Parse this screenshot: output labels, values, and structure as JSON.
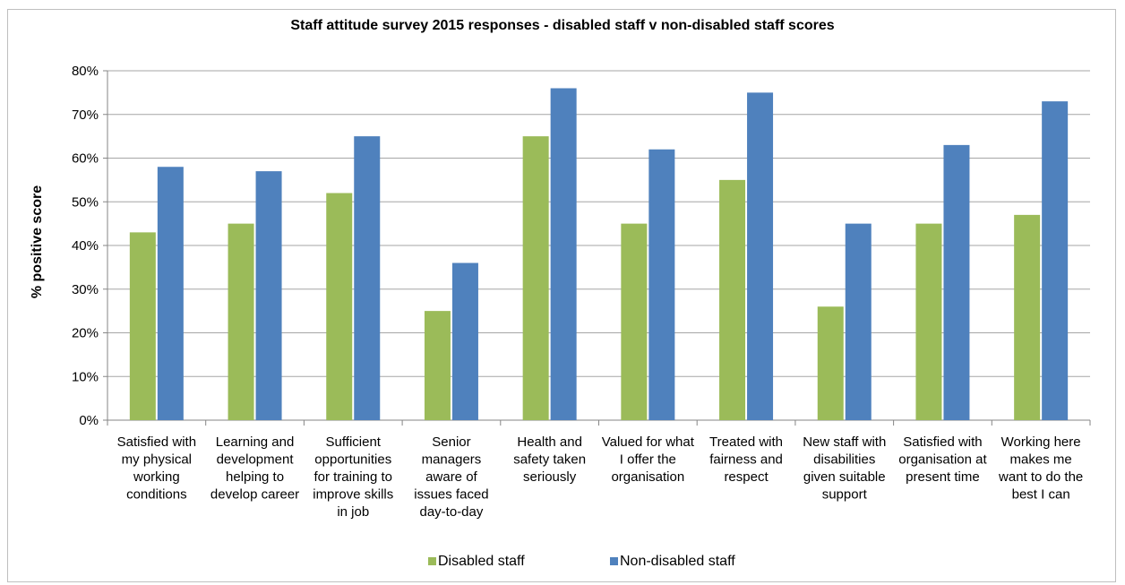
{
  "chart_data": {
    "type": "bar",
    "title": "Staff attitude survey 2015 responses - disabled staff v non-disabled staff scores",
    "ylabel": "% positive score",
    "xlabel": "",
    "ylim": [
      0,
      80
    ],
    "yticks": [
      "0%",
      "10%",
      "20%",
      "30%",
      "40%",
      "50%",
      "60%",
      "70%",
      "80%"
    ],
    "grid": true,
    "legend_position": "bottom",
    "categories": [
      "Satisfied with my physical working conditions",
      "Learning and development helping to develop career",
      "Sufficient opportunities for training to improve skills in job",
      "Senior managers aware of issues faced day-to-day",
      "Health and safety taken seriously",
      "Valued for what I offer the organisation",
      "Treated with fairness and respect",
      "New staff with disabilities given suitable support",
      "Satisfied with organisation at present time",
      "Working here makes me want to do the best I can"
    ],
    "series": [
      {
        "name": "Disabled staff",
        "color": "#9bbb59",
        "values": [
          43,
          45,
          52,
          25,
          65,
          45,
          55,
          26,
          45,
          47
        ]
      },
      {
        "name": "Non-disabled staff",
        "color": "#4f81bd",
        "values": [
          58,
          57,
          65,
          36,
          76,
          62,
          75,
          45,
          63,
          73
        ]
      }
    ]
  }
}
